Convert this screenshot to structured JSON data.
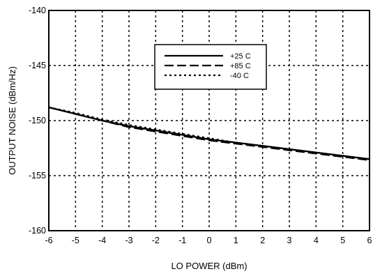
{
  "chart_data": {
    "type": "line",
    "xlabel": "LO POWER (dBm)",
    "ylabel": "OUTPUT NOISE (dBm/Hz)",
    "xlim": [
      -6,
      6
    ],
    "ylim": [
      -160,
      -140
    ],
    "x_ticks": [
      -6,
      -5,
      -4,
      -3,
      -2,
      -1,
      0,
      1,
      2,
      3,
      4,
      5,
      6
    ],
    "y_ticks": [
      -140,
      -145,
      -150,
      -155,
      -160
    ],
    "grid": true,
    "legend_position": "top-center",
    "series": [
      {
        "name": "+25 C",
        "style": "solid",
        "x": [
          -6,
          -5,
          -4,
          -3,
          -2,
          -1,
          0,
          1,
          2,
          3,
          4,
          5,
          6
        ],
        "y": [
          -148.8,
          -149.4,
          -150.0,
          -150.5,
          -150.9,
          -151.3,
          -151.7,
          -152.0,
          -152.3,
          -152.6,
          -152.9,
          -153.2,
          -153.5
        ]
      },
      {
        "name": "+85 C",
        "style": "dashed",
        "x": [
          -6,
          -5,
          -4,
          -3,
          -2,
          -1,
          0,
          1,
          2,
          3,
          4,
          5,
          6
        ],
        "y": [
          -148.8,
          -149.4,
          -150.0,
          -150.6,
          -151.0,
          -151.4,
          -151.8,
          -152.1,
          -152.4,
          -152.7,
          -153.0,
          -153.3,
          -153.6
        ]
      },
      {
        "name": "-40 C",
        "style": "dotted",
        "x": [
          -6,
          -5,
          -4,
          -3,
          -2,
          -1,
          0,
          1,
          2,
          3,
          4,
          5,
          6
        ],
        "y": [
          -148.8,
          -149.3,
          -149.9,
          -150.4,
          -150.8,
          -151.2,
          -151.6,
          -152.0,
          -152.3,
          -152.6,
          -152.9,
          -153.2,
          -153.5
        ]
      }
    ]
  }
}
